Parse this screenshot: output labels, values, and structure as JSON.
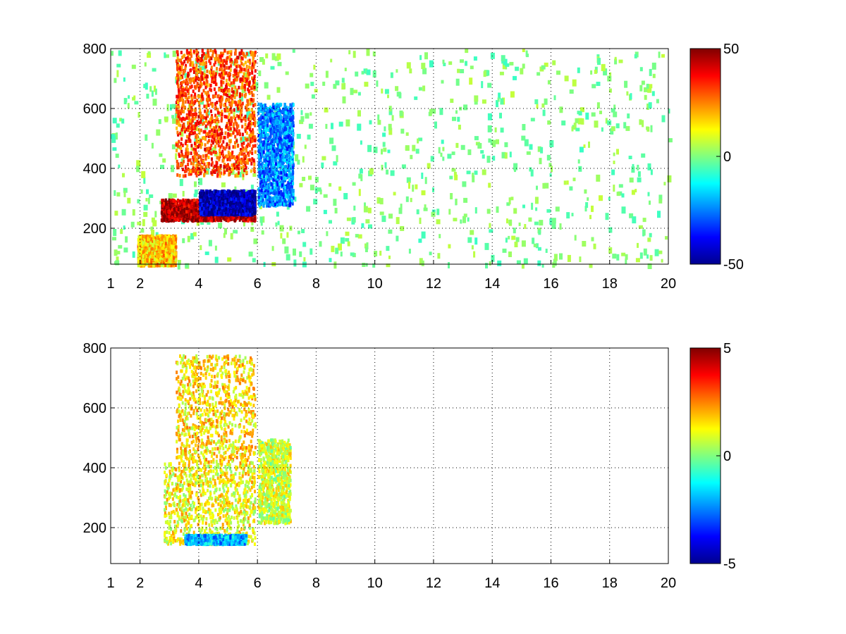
{
  "chart_data": [
    {
      "type": "heatmap",
      "title": "",
      "xlabel": "",
      "ylabel": "",
      "xlim": [
        1,
        20
      ],
      "ylim": [
        80,
        800
      ],
      "xticks": [
        1,
        2,
        4,
        6,
        8,
        10,
        12,
        14,
        16,
        18,
        20
      ],
      "yticks": [
        200,
        400,
        600,
        800
      ],
      "grid": true,
      "colormap": "jet",
      "clim": [
        -50,
        50
      ],
      "colorbar_ticks": [
        -50,
        0,
        50
      ],
      "colorbar_position": "right",
      "features": [
        {
          "name": "",
          "x_range": [
            2.7,
            5.9
          ],
          "y_range": [
            230,
            300
          ],
          "value": 45
        },
        {
          "name": "",
          "x_range": [
            1.9,
            3.2
          ],
          "y_range": [
            80,
            180
          ],
          "value": 18
        },
        {
          "name": "",
          "x_range": [
            3.2,
            5.9
          ],
          "y_range": [
            380,
            800
          ],
          "value": 30
        },
        {
          "name": "",
          "x_range": [
            4.0,
            5.9
          ],
          "y_range": [
            250,
            330
          ],
          "value": -45
        },
        {
          "name": "",
          "x_range": [
            6.0,
            7.2
          ],
          "y_range": [
            280,
            620
          ],
          "value": -25
        }
      ]
    },
    {
      "type": "heatmap",
      "title": "",
      "xlabel": "",
      "ylabel": "",
      "xlim": [
        1,
        20
      ],
      "ylim": [
        80,
        800
      ],
      "xticks": [
        1,
        2,
        4,
        6,
        8,
        10,
        12,
        14,
        16,
        18,
        20
      ],
      "yticks": [
        200,
        400,
        600,
        800
      ],
      "grid": true,
      "colormap": "jet",
      "clim": [
        -5,
        5
      ],
      "colorbar_ticks": [
        -5,
        0,
        5
      ],
      "colorbar_position": "right",
      "features": [
        {
          "name": "",
          "x_range": [
            2.8,
            5.9
          ],
          "y_range": [
            150,
            420
          ],
          "value": 1.2
        },
        {
          "name": "",
          "x_range": [
            3.2,
            5.9
          ],
          "y_range": [
            420,
            780
          ],
          "value": 1.5
        },
        {
          "name": "",
          "x_range": [
            3.5,
            5.6
          ],
          "y_range": [
            150,
            180
          ],
          "value": -2
        },
        {
          "name": "",
          "x_range": [
            6.0,
            7.1
          ],
          "y_range": [
            220,
            500
          ],
          "value": 0.8
        }
      ]
    }
  ]
}
